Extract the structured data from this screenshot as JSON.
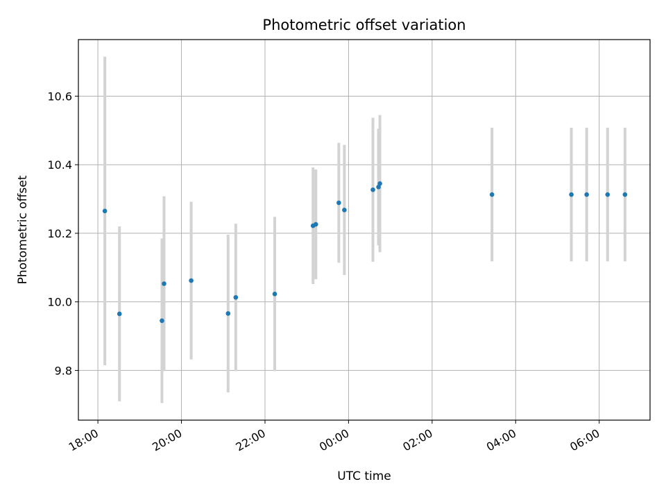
{
  "chart_data": {
    "type": "scatter",
    "title": "Photometric offset variation",
    "xlabel": "UTC time",
    "ylabel": "Photometric offset",
    "x_unit": "hour",
    "xlim": [
      "17:32",
      "07:13"
    ],
    "ylim": [
      9.655,
      10.765
    ],
    "x_ticks": [
      "18:00",
      "20:00",
      "22:00",
      "00:00",
      "02:00",
      "04:00",
      "06:00"
    ],
    "y_ticks": [
      9.8,
      10.0,
      10.2,
      10.4,
      10.6
    ],
    "grid": true,
    "legend": "none",
    "colors": {
      "point": "#1f77b4",
      "errorbar": "#d3d3d3",
      "grid": "#b0b0b0"
    },
    "points": [
      {
        "x": "18:10",
        "y": 10.265,
        "err": 0.45
      },
      {
        "x": "18:31",
        "y": 9.965,
        "err": 0.255
      },
      {
        "x": "19:32",
        "y": 9.945,
        "err": 0.24
      },
      {
        "x": "19:35",
        "y": 10.053,
        "err": 0.255
      },
      {
        "x": "20:14",
        "y": 10.062,
        "err": 0.23
      },
      {
        "x": "21:07",
        "y": 9.966,
        "err": 0.23
      },
      {
        "x": "21:18",
        "y": 10.013,
        "err": 0.215
      },
      {
        "x": "22:14",
        "y": 10.023,
        "err": 0.225
      },
      {
        "x": "23:09",
        "y": 10.222,
        "err": 0.17
      },
      {
        "x": "23:13",
        "y": 10.226,
        "err": 0.16
      },
      {
        "x": "23:46",
        "y": 10.289,
        "err": 0.175
      },
      {
        "x": "23:54",
        "y": 10.268,
        "err": 0.19
      },
      {
        "x": "00:35",
        "y": 10.327,
        "err": 0.21
      },
      {
        "x": "00:43",
        "y": 10.335,
        "err": 0.17
      },
      {
        "x": "00:45",
        "y": 10.345,
        "err": 0.2
      },
      {
        "x": "03:26",
        "y": 10.313,
        "err": 0.195
      },
      {
        "x": "05:20",
        "y": 10.313,
        "err": 0.195
      },
      {
        "x": "05:42",
        "y": 10.313,
        "err": 0.195
      },
      {
        "x": "06:12",
        "y": 10.313,
        "err": 0.195
      },
      {
        "x": "06:37",
        "y": 10.313,
        "err": 0.195
      }
    ]
  }
}
